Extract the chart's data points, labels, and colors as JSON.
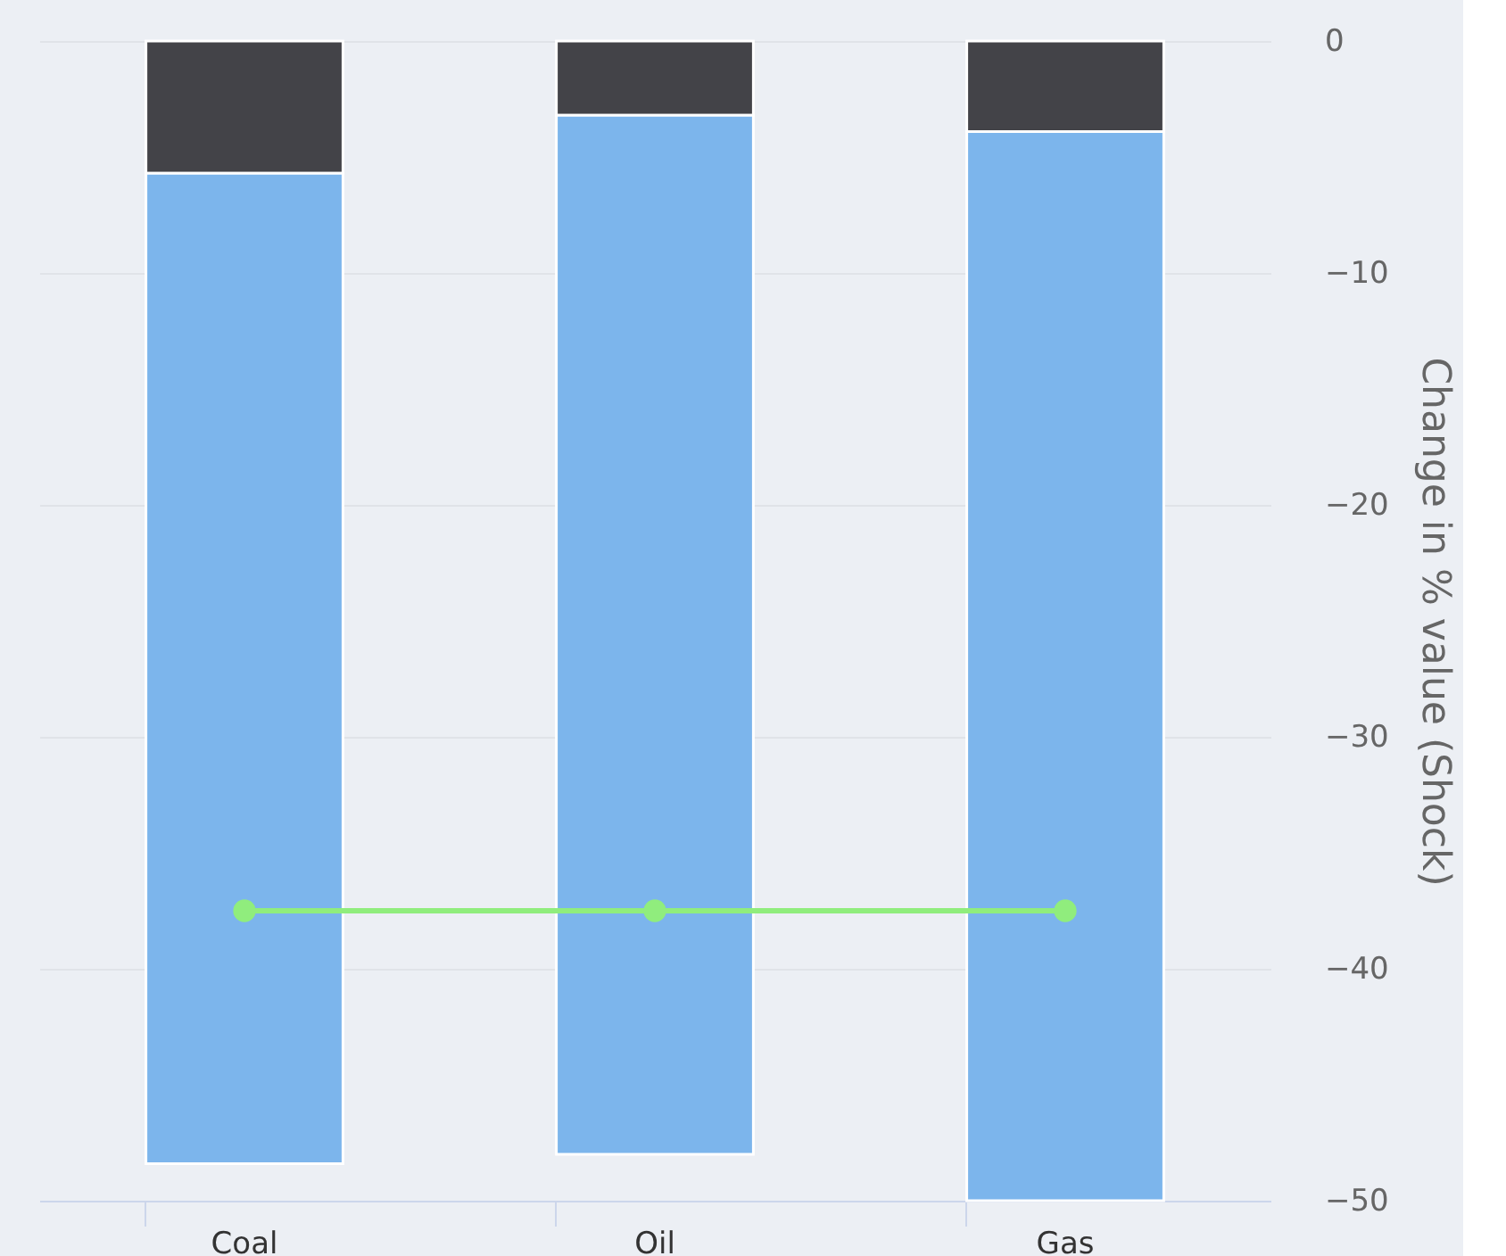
{
  "chart_data": {
    "type": "bar",
    "stacked": true,
    "categories": [
      "Coal",
      "Oil",
      "Gas"
    ],
    "series": [
      {
        "color": "#434348",
        "values": [
          -5.7,
          -3.2,
          -3.9
        ]
      },
      {
        "color": "#7cb5ec",
        "values": [
          -42.7,
          -44.8,
          -46.1
        ]
      },
      {
        "type": "line",
        "color": "#90ed7d",
        "values": [
          -37.5,
          -37.5,
          -37.5
        ],
        "marker": "circle"
      }
    ],
    "ylabel": "Change in % value (Shock)",
    "ylim": [
      -50,
      0
    ],
    "yticks": [
      -50,
      -40,
      -30,
      -20,
      -10,
      0
    ],
    "grid": "y"
  }
}
